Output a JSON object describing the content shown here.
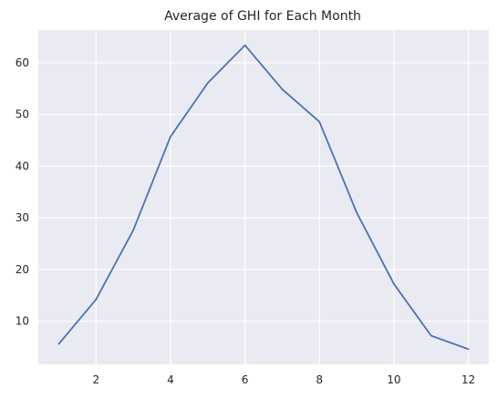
{
  "chart_data": {
    "type": "line",
    "title": "Average of GHI for Each Month",
    "xlabel": "",
    "ylabel": "",
    "x": [
      1,
      2,
      3,
      4,
      5,
      6,
      7,
      8,
      9,
      10,
      11,
      12
    ],
    "series": [
      {
        "values": [
          5.6,
          14.2,
          27.6,
          45.7,
          56.1,
          63.4,
          54.9,
          48.6,
          31.0,
          17.2,
          7.2,
          4.6
        ]
      }
    ],
    "xlim": [
      0.45,
      12.55
    ],
    "ylim": [
      1.66,
      66.34
    ],
    "xticks": [
      2,
      4,
      6,
      8,
      10,
      12
    ],
    "yticks": [
      10,
      20,
      30,
      40,
      50,
      60
    ],
    "grid": true,
    "legend": "none",
    "colors": {
      "plot_background": "#eaeaf2",
      "grid": "#ffffff",
      "line": "#4c72b0",
      "text": "#262626"
    }
  }
}
